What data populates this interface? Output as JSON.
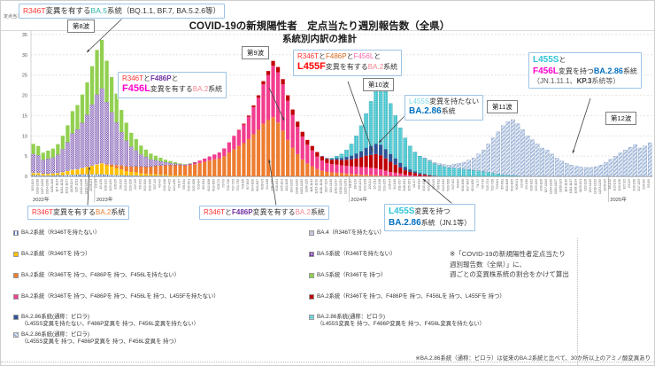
{
  "title": {
    "line1": "COVID-19の新規陽性者　定点当たり週別報告数（全県）",
    "line2": "系統別内訳の推計"
  },
  "y_axis": {
    "label": "定点当たり報告数",
    "ticks": [
      0,
      5,
      10,
      15,
      20,
      25,
      30,
      35
    ]
  },
  "x_axis": {
    "start_date": "2022-10-03",
    "weeks": 127,
    "year_suffix": "年"
  },
  "waves": [
    "第8波",
    "第9波",
    "第10波",
    "第11波",
    "第12波"
  ],
  "annotations": {
    "a1": {
      "lines": [
        [
          {
            "t": "R346T",
            "c": "#ff3333"
          },
          {
            "t": "変異を有する",
            "c": "#333333"
          },
          {
            "t": "BA.5",
            "c": "#2db3a6"
          },
          {
            "t": "系統（BQ.1.1, BF.7, BA.5.2.6等）",
            "c": "#333333"
          }
        ]
      ]
    },
    "a2": {
      "lines": [
        [
          {
            "t": "R346T",
            "c": "#ff3333"
          },
          {
            "t": "と",
            "c": "#333333"
          },
          {
            "t": "F486P",
            "c": "#7030a0",
            "b": true
          },
          {
            "t": "と",
            "c": "#333333"
          }
        ],
        [
          {
            "t": "F456L",
            "c": "#ff00cc",
            "b": true,
            "s": 11
          },
          {
            "t": "変異を有する",
            "c": "#333333"
          },
          {
            "t": "BA.2",
            "c": "#f4838f"
          },
          {
            "t": "系統",
            "c": "#333333"
          }
        ]
      ]
    },
    "a3": {
      "lines": [
        [
          {
            "t": "R346T",
            "c": "#ff3333"
          },
          {
            "t": "と",
            "c": "#333333"
          },
          {
            "t": "F486P",
            "c": "#d2691e"
          },
          {
            "t": "と",
            "c": "#333333"
          },
          {
            "t": "F456L",
            "c": "#ff66aa"
          },
          {
            "t": "と",
            "c": "#333333"
          }
        ],
        [
          {
            "t": "L455F",
            "c": "#ff0000",
            "b": true,
            "s": 11
          },
          {
            "t": "変異を有する",
            "c": "#333333"
          },
          {
            "t": "BA.2",
            "c": "#f4838f"
          },
          {
            "t": "系統",
            "c": "#333333"
          }
        ]
      ]
    },
    "a4": {
      "lines": [
        [
          {
            "t": "L455S",
            "c": "#7fd8e8"
          },
          {
            "t": "変異を持たない",
            "c": "#333333"
          }
        ],
        [
          {
            "t": "BA.2.86",
            "c": "#0070c0",
            "b": true,
            "s": 10
          },
          {
            "t": "系統",
            "c": "#333333"
          }
        ]
      ]
    },
    "a5": {
      "lines": [
        [
          {
            "t": "L455S",
            "c": "#2fc4d8",
            "b": true,
            "s": 10
          },
          {
            "t": "と",
            "c": "#333333"
          }
        ],
        [
          {
            "t": "F456L",
            "c": "#ff00cc",
            "b": true,
            "s": 10
          },
          {
            "t": "変異を持つ",
            "c": "#333333"
          },
          {
            "t": "BA.2.86",
            "c": "#0070c0",
            "b": true,
            "s": 9
          },
          {
            "t": "系統",
            "c": "#333333"
          }
        ],
        [
          {
            "t": "（JN.1.11.1、",
            "c": "#595959"
          },
          {
            "t": "KP.3",
            "c": "#404040",
            "b": true
          },
          {
            "t": "系統等）",
            "c": "#595959"
          }
        ]
      ]
    },
    "b1": {
      "lines": [
        [
          {
            "t": "R346T",
            "c": "#ff3333"
          },
          {
            "t": "変異を有する",
            "c": "#333333"
          },
          {
            "t": "BA.2",
            "c": "#ed7d31"
          },
          {
            "t": "系統",
            "c": "#333333"
          }
        ]
      ]
    },
    "b2": {
      "lines": [
        [
          {
            "t": "R346T",
            "c": "#ff3333"
          },
          {
            "t": "と",
            "c": "#333333"
          },
          {
            "t": "F486P",
            "c": "#7030a0",
            "b": true
          },
          {
            "t": "変異を有する",
            "c": "#333333"
          },
          {
            "t": "BA.2",
            "c": "#f4838f"
          },
          {
            "t": "系統",
            "c": "#333333"
          }
        ]
      ]
    },
    "b3": {
      "lines": [
        [
          {
            "t": "L455S",
            "c": "#2fc4d8",
            "b": true,
            "s": 10
          },
          {
            "t": "変異を持つ",
            "c": "#333333"
          }
        ],
        [
          {
            "t": "BA.2.86",
            "c": "#0070c0",
            "b": true,
            "s": 10
          },
          {
            "t": "系統（JN.1等）",
            "c": "#333333"
          }
        ]
      ]
    }
  },
  "legend": {
    "left": [
      {
        "swatch": "stripes",
        "text": "BA.2系統（R346Tを持たない）"
      },
      {
        "swatch": "solid:#ffc000",
        "text": "BA.2系統（R346Tを 持つ）"
      },
      {
        "swatch": "solid:#ed7d31",
        "text": "BA.2系統（R346Tを 持つ、F486Pを 持つ、F456Lを持たない）"
      },
      {
        "swatch": "solid:#f23d8f",
        "text": "BA.2系統（R346Tを 持つ、F486Pを 持つ、F456Lを 持つ、L455Fを持たない）"
      },
      {
        "swatch": "solid:#2e5395",
        "text": "BA.2.86系統(通称：ピロラ)",
        "text2": "（L455S変異を持たない、F486P変異を 持つ、F456L変異を持たない）"
      },
      {
        "swatch": "hatch",
        "text": "BA.2.86系統(通称：ピロラ)",
        "text2": "（L455S変異を 持つ、F486P変異を 持つ、F456L変異を 持つ）"
      }
    ],
    "right": [
      {
        "swatch": "solid:#ccc0da",
        "text": "BA.4（R346Tを持たない）"
      },
      {
        "swatch": "check",
        "text": "BA.5系統（R346Tを持たない）"
      },
      {
        "swatch": "solid:#92d050",
        "text": "BA.5系統（R346Tを 持つ）"
      },
      {
        "swatch": "solid:#c00000",
        "text": "BA.2系統（R346Tを 持つ、F486Pを 持つ、F456Lを 持つ、L455Fを 持つ）"
      },
      {
        "swatch": "dots",
        "text": "BA.2.86系統(通称：ピロラ)",
        "text2": "（L455S変異を 持つ、F486P変異を 持つ、F456L変異を持たない）"
      }
    ]
  },
  "notes": {
    "calc": [
      "※「COVID-19の新規陽性者定点当たり",
      "週別報告数（全県）」に、",
      "週ごとの変異株系統の割合をかけて算出"
    ],
    "pirola": "※BA.2.86系統（通称：ピロラ）は従来のBA.2系統と比べて、30か所以上のアミノ酸変異あり"
  },
  "chart_data": {
    "type": "bar",
    "stacked": true,
    "x_unit": "week",
    "weeks": 127,
    "start_date": "2022-10-03",
    "ylim": [
      0,
      35
    ],
    "grid": true,
    "series": [
      {
        "name": "BA.2系統（R346Tを持たない）",
        "color": "stripes",
        "start": 0,
        "values": [
          0.3,
          0.3,
          0.2,
          0.2,
          0.2,
          0.3,
          0.3,
          0.4,
          0.4,
          0.4,
          0.5,
          0.5,
          0.5,
          0.5,
          0.5,
          0.4,
          0.4,
          0.3,
          0.3,
          0.2,
          0.2,
          0.2,
          0.1,
          0.1,
          0.1,
          0.1,
          0.1,
          0.1
        ]
      },
      {
        "name": "BA.2系統（R346Tを持つ）",
        "color": "#ffc000",
        "start": 0,
        "values": [
          0.5,
          0.5,
          0.4,
          0.4,
          0.5,
          0.5,
          0.7,
          0.9,
          1.2,
          1.3,
          1.5,
          1.8,
          2.1,
          2.4,
          2.7,
          2.3,
          2.0,
          1.7,
          1.4,
          1.1,
          0.9,
          0.8,
          0.6,
          0.5,
          0.4,
          0.4,
          0.3,
          0.3,
          0.2,
          0.2,
          0.2,
          0.15,
          0.1,
          0.1
        ]
      },
      {
        "name": "BA.2系統（R346T・F486Pを持つ、F456Lを持たない）",
        "color": "#ed7d31",
        "start": 15,
        "values": [
          0.3,
          0.5,
          0.8,
          1.0,
          1.2,
          1.3,
          1.5,
          1.7,
          1.8,
          1.9,
          2.1,
          2.3,
          2.4,
          2.6,
          2.6,
          2.6,
          2.5,
          2.7,
          2.9,
          3.3,
          3.6,
          3.9,
          4.2,
          4.4,
          5.0,
          5.9,
          6.7,
          7.5,
          8.2,
          9.2,
          10.4,
          11.5,
          13.0,
          13.9,
          14.6,
          13.3,
          11.3,
          9.0,
          7.1,
          5.5,
          4.2,
          3.2,
          2.5,
          1.8,
          1.4,
          1.1,
          1.0,
          0.9,
          0.8,
          0.7,
          0.6,
          0.5,
          0.4,
          0.4,
          0.3,
          0.3,
          0.2,
          0.2,
          0.1,
          0.1,
          0.1
        ]
      },
      {
        "name": "BA.2系統（R346T・F486P・F456Lを持つ、L455Fを持たない）",
        "color": "#f23d8f",
        "start": 31,
        "values": [
          0.1,
          0.2,
          0.4,
          0.6,
          0.8,
          1.0,
          1.2,
          1.5,
          1.9,
          2.5,
          3.3,
          3.9,
          4.6,
          5.5,
          6.7,
          7.9,
          9.7,
          11.1,
          12.7,
          12.4,
          11.4,
          9.7,
          8.1,
          6.7,
          5.6,
          4.6,
          3.9,
          3.1,
          2.5,
          2.2,
          2.0,
          2.0,
          1.9,
          1.9,
          1.9,
          1.9,
          1.9,
          1.9,
          1.8,
          1.7,
          1.5,
          1.2,
          1.0,
          0.8,
          0.6,
          0.4,
          0.3,
          0.2,
          0.1,
          0.1
        ]
      },
      {
        "name": "BA.2系統（R346T・F486P・F456L・L455Fを持つ）",
        "color": "#c00000",
        "start": 42,
        "values": [
          0.1,
          0.2,
          0.3,
          0.4,
          0.6,
          0.8,
          1.0,
          1.2,
          1.3,
          1.3,
          1.3,
          1.3,
          1.3,
          1.2,
          1.2,
          1.1,
          1.1,
          1.0,
          1.0,
          1.1,
          1.2,
          1.3,
          1.5,
          1.7,
          2.0,
          2.4,
          2.8,
          3.2,
          3.5,
          3.5,
          3.0,
          2.5,
          2.0,
          1.5,
          1.1,
          0.8,
          0.6,
          0.4,
          0.3,
          0.2,
          0.1
        ]
      },
      {
        "name": "BA.4（R346Tを持たない）",
        "color": "#ccc0da",
        "start": 0,
        "values": [
          0.2,
          0.2,
          0.15,
          0.15,
          0.15,
          0.15,
          0.2,
          0.2,
          0.2,
          0.2,
          0.2,
          0.2,
          0.2,
          0.2,
          0.2,
          0.15,
          0.1,
          0.1,
          0.1,
          0.05,
          0.05
        ]
      },
      {
        "name": "BA.5系統（R346Tを持たない）",
        "color": "check",
        "start": 0,
        "values": [
          4.5,
          4.2,
          3.3,
          3.6,
          3.8,
          4.4,
          5.5,
          6.9,
          8.8,
          9.7,
          11.0,
          12.7,
          14.9,
          17.1,
          18.3,
          15.2,
          12.8,
          10.4,
          8.1,
          6.3,
          4.9,
          3.9,
          3.0,
          2.4,
          1.8,
          1.4,
          1.0,
          0.7,
          0.5,
          0.35,
          0.2,
          0.15,
          0.1,
          0.05
        ]
      },
      {
        "name": "BA.5系統（R346Tを持つ）",
        "color": "#92d050",
        "start": 0,
        "values": [
          2.5,
          2.3,
          1.8,
          2.0,
          2.2,
          2.6,
          3.3,
          4.2,
          5.5,
          6.0,
          7.0,
          8.0,
          9.5,
          11.0,
          12.0,
          10.2,
          8.7,
          7.1,
          5.5,
          4.4,
          3.4,
          2.8,
          2.2,
          1.8,
          1.4,
          1.1,
          0.9,
          0.6,
          0.5,
          0.35,
          0.2,
          0.1,
          0.1,
          0.05
        ]
      },
      {
        "name": "BA.2.86系統（L455Sを持たない）",
        "color": "#2e5395",
        "start": 59,
        "values": [
          0.1,
          0.2,
          0.2,
          0.4,
          0.5,
          0.7,
          0.9,
          1.2,
          1.5,
          1.9,
          2.2,
          2.5,
          2.6,
          2.3,
          1.9,
          1.5,
          1.1,
          0.8,
          0.6,
          0.4,
          0.3,
          0.2,
          0.1
        ]
      },
      {
        "name": "BA.2.86系統（L455Sを持つ、F456Lを持たない・JN.1等）",
        "color": "dots",
        "start": 61,
        "values": [
          0.2,
          0.5,
          1.0,
          1.7,
          2.9,
          4.4,
          6.3,
          8.5,
          11.0,
          13.5,
          15.2,
          14.3,
          12.5,
          10.6,
          8.7,
          7.2,
          5.8,
          4.8,
          4.2,
          3.8,
          3.5,
          3.0,
          2.7,
          2.4,
          2.1,
          2.0,
          1.9,
          1.8,
          1.7,
          1.5,
          1.4,
          1.2,
          1.0,
          0.8,
          0.6,
          0.4,
          0.3,
          0.2,
          0.1
        ]
      },
      {
        "name": "BA.2.86系統（L455S・F456Lを持つ・JN.1.11.1、KP.3等）",
        "color": "hatch",
        "start": 80,
        "values": [
          0.1,
          0.2,
          0.3,
          0.4,
          0.5,
          0.7,
          1.0,
          1.3,
          1.7,
          2.3,
          3.0,
          4.1,
          5.3,
          7.0,
          8.7,
          10.4,
          12.1,
          13.2,
          13.8,
          12.9,
          11.5,
          10.0,
          9.0,
          8.0,
          7.0,
          6.5,
          5.5,
          4.5,
          3.8,
          3.2,
          2.8,
          2.5,
          2.3,
          2.2,
          2.2,
          2.4,
          2.8,
          3.4,
          4.2,
          5.0,
          5.8,
          6.5,
          7.2,
          7.8,
          7.0,
          7.5,
          8.3
        ]
      }
    ]
  }
}
